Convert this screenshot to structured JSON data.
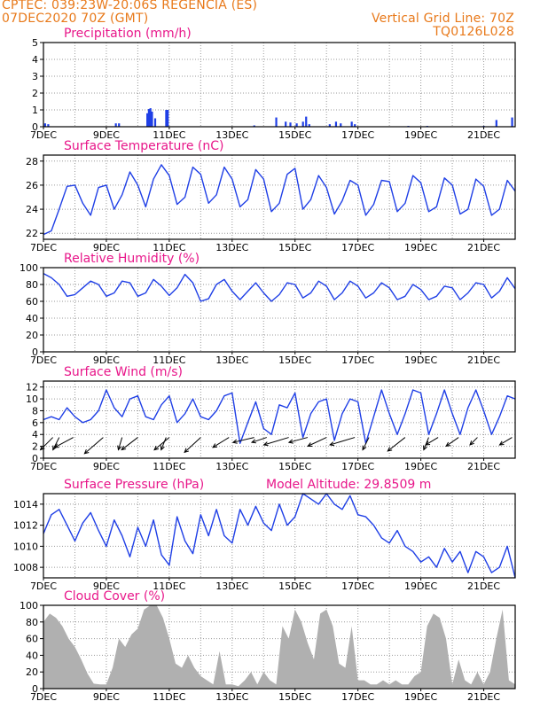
{
  "header": {
    "line1_left": "CPTEC:   039:23W-20:06S   REGENCIA (ES)",
    "line2_left": "07DEC2020 70Z (GMT)",
    "line2_right": "Vertical Grid Line: 70Z",
    "line3_right": "TQ0126L028"
  },
  "colors": {
    "header": "#e8791a",
    "title": "#e8178a",
    "series": "#1f3fe6",
    "cloud_fill": "#b0b0b0",
    "grid": "#9a9a9a",
    "wind_vector": "#000000"
  },
  "chart_data": [
    {
      "id": "precip",
      "type": "bar",
      "title": "Precipitation (mm/h)",
      "ylim": [
        0,
        5
      ],
      "yticks": [
        0,
        1,
        2,
        3,
        4,
        5
      ],
      "xlabel_ticks": [
        "7DEC",
        "9DEC",
        "11DEC",
        "13DEC",
        "15DEC",
        "17DEC",
        "19DEC",
        "21DEC"
      ],
      "x_day_range": [
        7,
        22
      ],
      "bars": [
        {
          "day": 7.05,
          "value": 0.2
        },
        {
          "day": 7.15,
          "value": 0.15
        },
        {
          "day": 9.3,
          "value": 0.2
        },
        {
          "day": 9.4,
          "value": 0.2
        },
        {
          "day": 10.3,
          "value": 0.8
        },
        {
          "day": 10.35,
          "value": 1.05
        },
        {
          "day": 10.4,
          "value": 1.1
        },
        {
          "day": 10.45,
          "value": 0.9
        },
        {
          "day": 10.55,
          "value": 0.5
        },
        {
          "day": 10.9,
          "value": 1.0
        },
        {
          "day": 10.95,
          "value": 1.0
        },
        {
          "day": 13.7,
          "value": 0.08
        },
        {
          "day": 14.4,
          "value": 0.55
        },
        {
          "day": 14.7,
          "value": 0.3
        },
        {
          "day": 14.85,
          "value": 0.25
        },
        {
          "day": 15.05,
          "value": 0.2
        },
        {
          "day": 15.25,
          "value": 0.3
        },
        {
          "day": 15.35,
          "value": 0.6
        },
        {
          "day": 15.45,
          "value": 0.15
        },
        {
          "day": 16.1,
          "value": 0.15
        },
        {
          "day": 16.3,
          "value": 0.3
        },
        {
          "day": 16.45,
          "value": 0.2
        },
        {
          "day": 16.8,
          "value": 0.3
        },
        {
          "day": 16.9,
          "value": 0.15
        },
        {
          "day": 18.6,
          "value": 0.05
        },
        {
          "day": 19.2,
          "value": 0.05
        },
        {
          "day": 21.0,
          "value": 0.05
        },
        {
          "day": 21.4,
          "value": 0.4
        },
        {
          "day": 21.9,
          "value": 0.55
        }
      ]
    },
    {
      "id": "temp",
      "type": "line",
      "title": "Surface Temperature (nC)",
      "ylim": [
        21.5,
        28.5
      ],
      "yticks": [
        22,
        24,
        26,
        28
      ],
      "xlabel_ticks": [
        "7DEC",
        "9DEC",
        "11DEC",
        "13DEC",
        "15DEC",
        "17DEC",
        "19DEC",
        "21DEC"
      ],
      "x_day_range": [
        7,
        22
      ],
      "x": [
        7.0,
        7.25,
        7.5,
        7.75,
        8.0,
        8.25,
        8.5,
        8.75,
        9.0,
        9.25,
        9.5,
        9.75,
        10.0,
        10.25,
        10.5,
        10.75,
        11.0,
        11.25,
        11.5,
        11.75,
        12.0,
        12.25,
        12.5,
        12.75,
        13.0,
        13.25,
        13.5,
        13.75,
        14.0,
        14.25,
        14.5,
        14.75,
        15.0,
        15.25,
        15.5,
        15.75,
        16.0,
        16.25,
        16.5,
        16.75,
        17.0,
        17.25,
        17.5,
        17.75,
        18.0,
        18.25,
        18.5,
        18.75,
        19.0,
        19.25,
        19.5,
        19.75,
        20.0,
        20.25,
        20.5,
        20.75,
        21.0,
        21.25,
        21.5,
        21.75,
        22.0
      ],
      "y": [
        21.9,
        22.2,
        24.0,
        25.9,
        26.0,
        24.5,
        23.5,
        25.8,
        26.0,
        24.0,
        25.2,
        27.1,
        26.0,
        24.2,
        26.5,
        27.7,
        26.8,
        24.4,
        25.0,
        27.5,
        26.9,
        24.5,
        25.2,
        27.5,
        26.5,
        24.2,
        24.8,
        27.3,
        26.5,
        23.8,
        24.5,
        26.9,
        27.4,
        24.0,
        24.8,
        26.8,
        25.8,
        23.6,
        24.7,
        26.4,
        26.0,
        23.5,
        24.4,
        26.4,
        26.3,
        23.8,
        24.5,
        26.8,
        26.2,
        23.8,
        24.2,
        26.6,
        26.0,
        23.6,
        24.0,
        26.5,
        25.9,
        23.5,
        24.0,
        26.4,
        25.5
      ]
    },
    {
      "id": "rh",
      "type": "line",
      "title": "Relative Humidity (%)",
      "ylim": [
        0,
        100
      ],
      "yticks": [
        0,
        20,
        40,
        60,
        80,
        100
      ],
      "xlabel_ticks": [
        "7DEC",
        "9DEC",
        "11DEC",
        "13DEC",
        "15DEC",
        "17DEC",
        "19DEC",
        "21DEC"
      ],
      "x_day_range": [
        7,
        22
      ],
      "x": [
        7.0,
        7.25,
        7.5,
        7.75,
        8.0,
        8.25,
        8.5,
        8.75,
        9.0,
        9.25,
        9.5,
        9.75,
        10.0,
        10.25,
        10.5,
        10.75,
        11.0,
        11.25,
        11.5,
        11.75,
        12.0,
        12.25,
        12.5,
        12.75,
        13.0,
        13.25,
        13.5,
        13.75,
        14.0,
        14.25,
        14.5,
        14.75,
        15.0,
        15.25,
        15.5,
        15.75,
        16.0,
        16.25,
        16.5,
        16.75,
        17.0,
        17.25,
        17.5,
        17.75,
        18.0,
        18.25,
        18.5,
        18.75,
        19.0,
        19.25,
        19.5,
        19.75,
        20.0,
        20.25,
        20.5,
        20.75,
        21.0,
        21.25,
        21.5,
        21.75,
        22.0
      ],
      "y": [
        93,
        88,
        80,
        66,
        68,
        76,
        84,
        80,
        66,
        70,
        84,
        82,
        66,
        70,
        86,
        78,
        67,
        76,
        92,
        82,
        60,
        63,
        80,
        86,
        72,
        62,
        72,
        82,
        70,
        60,
        68,
        82,
        80,
        64,
        70,
        84,
        78,
        62,
        70,
        84,
        78,
        64,
        70,
        82,
        76,
        62,
        66,
        80,
        74,
        62,
        66,
        78,
        76,
        62,
        70,
        82,
        80,
        64,
        72,
        88,
        75
      ]
    },
    {
      "id": "wind",
      "type": "line",
      "title": "Surface Wind (m/s)",
      "ylim": [
        0,
        13
      ],
      "yticks": [
        0,
        2,
        4,
        6,
        8,
        10,
        12
      ],
      "xlabel_ticks": [
        "7DEC",
        "9DEC",
        "11DEC",
        "13DEC",
        "15DEC",
        "17DEC",
        "19DEC",
        "21DEC"
      ],
      "x_day_range": [
        7,
        22
      ],
      "x": [
        7.0,
        7.25,
        7.5,
        7.75,
        8.0,
        8.25,
        8.5,
        8.75,
        9.0,
        9.25,
        9.5,
        9.75,
        10.0,
        10.25,
        10.5,
        10.75,
        11.0,
        11.25,
        11.5,
        11.75,
        12.0,
        12.25,
        12.5,
        12.75,
        13.0,
        13.25,
        13.5,
        13.75,
        14.0,
        14.25,
        14.5,
        14.75,
        15.0,
        15.25,
        15.5,
        15.75,
        16.0,
        16.25,
        16.5,
        16.75,
        17.0,
        17.25,
        17.5,
        17.75,
        18.0,
        18.25,
        18.5,
        18.75,
        19.0,
        19.25,
        19.5,
        19.75,
        20.0,
        20.25,
        20.5,
        20.75,
        21.0,
        21.25,
        21.5,
        21.75,
        22.0
      ],
      "y": [
        6.5,
        7.0,
        6.5,
        8.5,
        7.0,
        6.0,
        6.5,
        8.0,
        11.5,
        8.5,
        7.0,
        10.0,
        10.5,
        7.0,
        6.5,
        9.0,
        10.5,
        6.0,
        7.5,
        10.0,
        7.0,
        6.5,
        8.0,
        10.5,
        11.0,
        2.5,
        6.0,
        9.5,
        5.0,
        4.0,
        9.0,
        8.5,
        11.0,
        3.5,
        7.5,
        9.5,
        10.0,
        3.0,
        7.5,
        10.0,
        9.5,
        2.5,
        7.0,
        11.5,
        7.5,
        4.0,
        7.5,
        11.5,
        11.0,
        4.0,
        7.5,
        11.5,
        7.5,
        4.0,
        8.5,
        11.5,
        8.0,
        4.0,
        7.0,
        10.5,
        10.0
      ],
      "vectors": [
        {
          "day": 7.3,
          "u": -1.0,
          "v": -1.0
        },
        {
          "day": 7.5,
          "u": -0.5,
          "v": -1.0
        },
        {
          "day": 7.95,
          "u": -1.5,
          "v": -0.8
        },
        {
          "day": 8.9,
          "u": -1.5,
          "v": -1.3
        },
        {
          "day": 9.5,
          "u": -0.3,
          "v": -1.0
        },
        {
          "day": 10.0,
          "u": -1.3,
          "v": -1.0
        },
        {
          "day": 10.9,
          "u": -0.4,
          "v": -1.0
        },
        {
          "day": 11.0,
          "u": -1.2,
          "v": -1.0
        },
        {
          "day": 12.0,
          "u": -1.3,
          "v": -1.2
        },
        {
          "day": 12.9,
          "u": -1.3,
          "v": -0.8
        },
        {
          "day": 13.7,
          "u": -1.7,
          "v": -0.4
        },
        {
          "day": 14.1,
          "u": -1.2,
          "v": -0.4
        },
        {
          "day": 14.8,
          "u": -2.0,
          "v": -0.6
        },
        {
          "day": 15.4,
          "u": -1.5,
          "v": -0.4
        },
        {
          "day": 16.0,
          "u": -1.5,
          "v": -0.7
        },
        {
          "day": 16.9,
          "u": -2.0,
          "v": -0.6
        },
        {
          "day": 17.35,
          "u": -0.5,
          "v": -1.0
        },
        {
          "day": 18.5,
          "u": -1.4,
          "v": -1.1
        },
        {
          "day": 19.25,
          "u": -0.4,
          "v": -1.0
        },
        {
          "day": 19.55,
          "u": -1.0,
          "v": -0.6
        },
        {
          "day": 20.2,
          "u": -1.0,
          "v": -0.7
        },
        {
          "day": 20.8,
          "u": -0.6,
          "v": -0.6
        },
        {
          "day": 21.9,
          "u": -1.0,
          "v": -0.6
        }
      ]
    },
    {
      "id": "pressure",
      "type": "line",
      "title": "Surface Pressure (hPa)",
      "annotation": "Model Altitude: 29.8509  m",
      "ylim": [
        1007,
        1015
      ],
      "yticks": [
        1008,
        1010,
        1012,
        1014
      ],
      "xlabel_ticks": [
        "7DEC",
        "9DEC",
        "11DEC",
        "13DEC",
        "15DEC",
        "17DEC",
        "19DEC",
        "21DEC"
      ],
      "x_day_range": [
        7,
        22
      ],
      "x": [
        7.0,
        7.25,
        7.5,
        7.75,
        8.0,
        8.25,
        8.5,
        8.75,
        9.0,
        9.25,
        9.5,
        9.75,
        10.0,
        10.25,
        10.5,
        10.75,
        11.0,
        11.25,
        11.5,
        11.75,
        12.0,
        12.25,
        12.5,
        12.75,
        13.0,
        13.25,
        13.5,
        13.75,
        14.0,
        14.25,
        14.5,
        14.75,
        15.0,
        15.25,
        15.5,
        15.75,
        16.0,
        16.25,
        16.5,
        16.75,
        17.0,
        17.25,
        17.5,
        17.75,
        18.0,
        18.25,
        18.5,
        18.75,
        19.0,
        19.25,
        19.5,
        19.75,
        20.0,
        20.25,
        20.5,
        20.75,
        21.0,
        21.25,
        21.5,
        21.75,
        22.0
      ],
      "y": [
        1011.2,
        1013.0,
        1013.5,
        1012.0,
        1010.5,
        1012.2,
        1013.2,
        1011.5,
        1010.0,
        1012.5,
        1011.0,
        1009.0,
        1011.8,
        1010.0,
        1012.5,
        1009.2,
        1008.2,
        1012.8,
        1010.5,
        1009.3,
        1013.0,
        1011.0,
        1013.5,
        1011.0,
        1010.3,
        1013.5,
        1012.0,
        1013.8,
        1012.2,
        1011.5,
        1014.0,
        1012.0,
        1012.8,
        1015.0,
        1014.5,
        1014.0,
        1015.0,
        1014.0,
        1013.5,
        1014.8,
        1013.0,
        1012.8,
        1012.0,
        1010.8,
        1010.3,
        1011.5,
        1010.0,
        1009.5,
        1008.5,
        1009.0,
        1008.0,
        1009.8,
        1008.5,
        1009.5,
        1007.5,
        1009.5,
        1009.0,
        1007.5,
        1008.0,
        1010.0,
        1007.0
      ]
    },
    {
      "id": "cloud",
      "type": "area",
      "title": "Cloud Cover (%)",
      "ylim": [
        0,
        100
      ],
      "yticks": [
        0,
        20,
        40,
        60,
        80,
        100
      ],
      "xlabel_ticks": [
        "7DEC",
        "9DEC",
        "11DEC",
        "13DEC",
        "15DEC",
        "17DEC",
        "19DEC",
        "21DEC"
      ],
      "x_day_range": [
        7,
        22
      ],
      "x": [
        7.0,
        7.2,
        7.4,
        7.6,
        7.8,
        8.0,
        8.2,
        8.4,
        8.6,
        8.8,
        9.0,
        9.2,
        9.4,
        9.6,
        9.8,
        10.0,
        10.2,
        10.4,
        10.6,
        10.8,
        11.0,
        11.2,
        11.4,
        11.6,
        11.8,
        12.0,
        12.2,
        12.4,
        12.6,
        12.8,
        13.0,
        13.2,
        13.4,
        13.6,
        13.8,
        14.0,
        14.2,
        14.4,
        14.6,
        14.8,
        15.0,
        15.2,
        15.4,
        15.6,
        15.8,
        16.0,
        16.2,
        16.4,
        16.6,
        16.8,
        17.0,
        17.2,
        17.4,
        17.6,
        17.8,
        18.0,
        18.2,
        18.4,
        18.6,
        18.8,
        19.0,
        19.2,
        19.4,
        19.6,
        19.8,
        20.0,
        20.2,
        20.4,
        20.6,
        20.8,
        21.0,
        21.2,
        21.4,
        21.6,
        21.8,
        22.0
      ],
      "y": [
        80,
        90,
        85,
        75,
        60,
        50,
        35,
        18,
        6,
        5,
        5,
        25,
        60,
        50,
        65,
        72,
        95,
        100,
        100,
        85,
        60,
        30,
        25,
        40,
        25,
        15,
        10,
        5,
        45,
        5,
        5,
        3,
        10,
        20,
        5,
        20,
        10,
        5,
        75,
        60,
        95,
        80,
        55,
        35,
        90,
        95,
        75,
        30,
        25,
        75,
        10,
        10,
        5,
        5,
        10,
        5,
        10,
        5,
        5,
        15,
        20,
        75,
        90,
        85,
        60,
        5,
        35,
        10,
        5,
        20,
        5,
        20,
        60,
        95,
        10,
        5
      ]
    }
  ]
}
